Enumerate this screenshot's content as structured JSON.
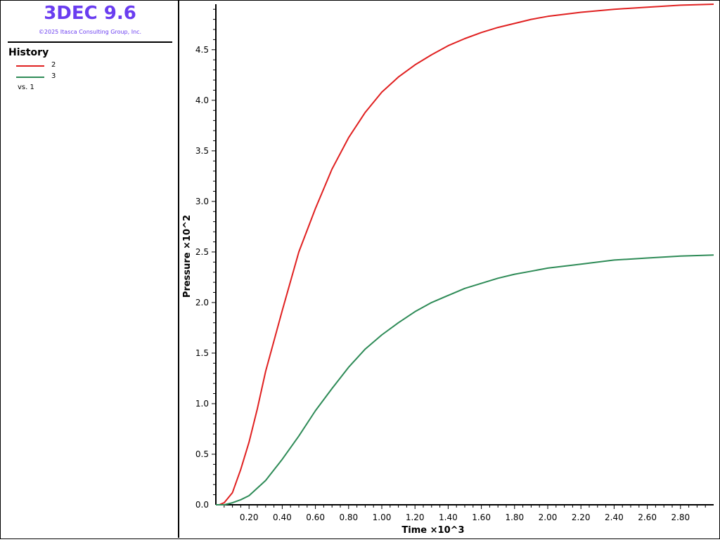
{
  "app": {
    "title": "3DEC 9.6",
    "copyright": "©2025 Itasca Consulting Group, Inc."
  },
  "legend": {
    "heading": "History",
    "items": [
      {
        "label": "2",
        "color": "#e02020"
      },
      {
        "label": "3",
        "color": "#2e8b57"
      }
    ],
    "vs_label": "vs. 1"
  },
  "chart_data": {
    "type": "line",
    "xlabel": "Time ×10^3",
    "ylabel": "Pressure ×10^2",
    "xlim": [
      0.0,
      3.0
    ],
    "ylim": [
      0.0,
      4.95
    ],
    "xticks": [
      0.2,
      0.4,
      0.6,
      0.8,
      1.0,
      1.2,
      1.4,
      1.6,
      1.8,
      2.0,
      2.2,
      2.4,
      2.6,
      2.8
    ],
    "xtick_labels": [
      "0.20",
      "0.40",
      "0.60",
      "0.80",
      "1.00",
      "1.20",
      "1.40",
      "1.60",
      "1.80",
      "2.00",
      "2.20",
      "2.40",
      "2.60",
      "2.80"
    ],
    "yticks": [
      0.0,
      0.5,
      1.0,
      1.5,
      2.0,
      2.5,
      3.0,
      3.5,
      4.0,
      4.5
    ],
    "ytick_labels": [
      "0.0",
      "0.5",
      "1.0",
      "1.5",
      "2.0",
      "2.5",
      "3.0",
      "3.5",
      "4.0",
      "4.5"
    ],
    "grid": false,
    "series": [
      {
        "name": "2",
        "color": "#e02020",
        "x": [
          0.0,
          0.02,
          0.05,
          0.1,
          0.15,
          0.2,
          0.25,
          0.3,
          0.4,
          0.5,
          0.6,
          0.7,
          0.8,
          0.9,
          1.0,
          1.1,
          1.2,
          1.3,
          1.4,
          1.5,
          1.6,
          1.7,
          1.8,
          1.9,
          2.0,
          2.2,
          2.4,
          2.6,
          2.8,
          3.0
        ],
        "y": [
          0.0,
          0.0,
          0.02,
          0.12,
          0.35,
          0.62,
          0.95,
          1.32,
          1.92,
          2.5,
          2.93,
          3.32,
          3.63,
          3.88,
          4.08,
          4.23,
          4.35,
          4.45,
          4.54,
          4.61,
          4.67,
          4.72,
          4.76,
          4.8,
          4.83,
          4.87,
          4.9,
          4.92,
          4.94,
          4.95
        ]
      },
      {
        "name": "3",
        "color": "#2e8b57",
        "x": [
          0.0,
          0.05,
          0.1,
          0.15,
          0.2,
          0.3,
          0.4,
          0.5,
          0.6,
          0.7,
          0.8,
          0.9,
          1.0,
          1.1,
          1.2,
          1.3,
          1.4,
          1.5,
          1.6,
          1.7,
          1.8,
          1.9,
          2.0,
          2.2,
          2.4,
          2.6,
          2.8,
          3.0
        ],
        "y": [
          0.0,
          0.0,
          0.02,
          0.05,
          0.09,
          0.24,
          0.45,
          0.68,
          0.93,
          1.15,
          1.36,
          1.54,
          1.68,
          1.8,
          1.91,
          2.0,
          2.07,
          2.14,
          2.19,
          2.24,
          2.28,
          2.31,
          2.34,
          2.38,
          2.42,
          2.44,
          2.46,
          2.47
        ]
      }
    ]
  }
}
